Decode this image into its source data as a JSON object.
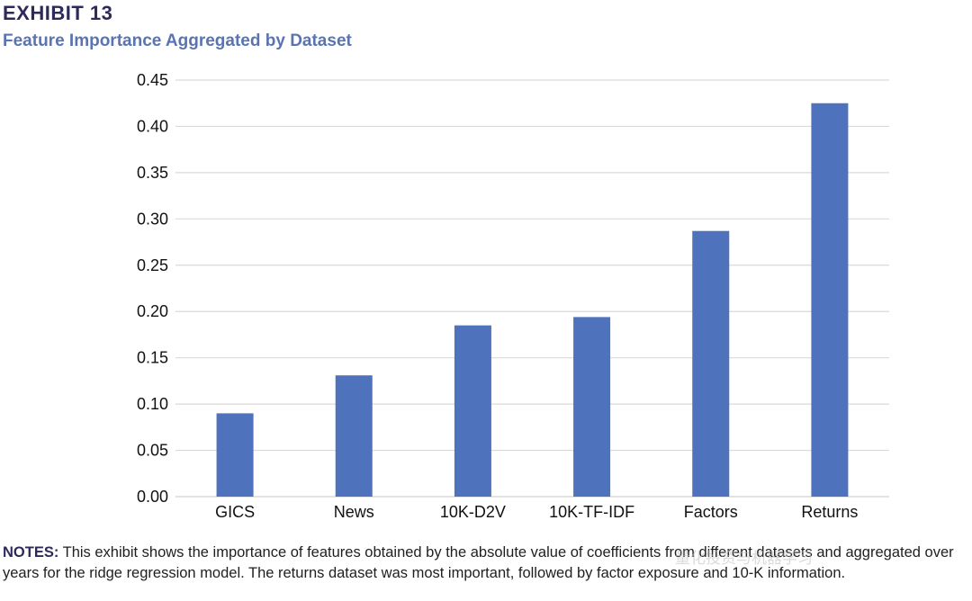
{
  "header": {
    "exhibit": "EXHIBIT 13",
    "subtitle": "Feature Importance Aggregated by Dataset"
  },
  "chart_data": {
    "type": "bar",
    "title": "Feature Importance Aggregated by Dataset",
    "categories": [
      "GICS",
      "News",
      "10K-D2V",
      "10K-TF-IDF",
      "Factors",
      "Returns"
    ],
    "values": [
      0.09,
      0.131,
      0.185,
      0.194,
      0.287,
      0.425
    ],
    "xlabel": "",
    "ylabel": "",
    "ylim": [
      0,
      0.45
    ],
    "yticks": [
      "0.00",
      "0.05",
      "0.10",
      "0.15",
      "0.20",
      "0.25",
      "0.30",
      "0.35",
      "0.40",
      "0.45"
    ],
    "grid": true,
    "bar_color": "#4f72bd",
    "grid_color": "#d9d9d9"
  },
  "notes": {
    "label": "NOTES:",
    "text": " This exhibit shows the importance of features obtained by the absolute value of coefficients from different datasets and aggregated over years for the ridge regression model. The returns dataset was most important, followed by factor exposure and 10-K information."
  },
  "watermark": "量化投资与机器学习"
}
